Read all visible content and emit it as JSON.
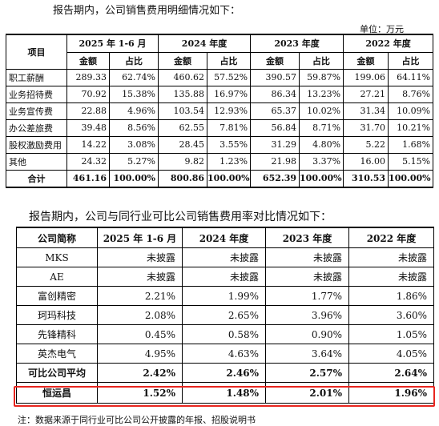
{
  "intro1": "报告期内，公司销售费用明细情况如下：",
  "unit": "单位：万元",
  "table1": {
    "item_header": "项目",
    "periods": [
      "2025 年 1-6 月",
      "2024 年度",
      "2023 年度",
      "2022 年度"
    ],
    "amount_label": "金额",
    "ratio_label": "占比",
    "rows": [
      {
        "name": "职工薪酬",
        "cells": [
          "289.33",
          "62.74%",
          "460.62",
          "57.52%",
          "390.57",
          "59.87%",
          "199.06",
          "64.11%"
        ]
      },
      {
        "name": "业务招待费",
        "cells": [
          "70.92",
          "15.38%",
          "135.88",
          "16.97%",
          "86.34",
          "13.23%",
          "27.21",
          "8.76%"
        ]
      },
      {
        "name": "业务宣传费",
        "cells": [
          "22.88",
          "4.96%",
          "103.54",
          "12.93%",
          "65.37",
          "10.02%",
          "31.34",
          "10.09%"
        ]
      },
      {
        "name": "办公差旅费",
        "cells": [
          "39.48",
          "8.56%",
          "62.55",
          "7.81%",
          "56.84",
          "8.71%",
          "31.70",
          "10.21%"
        ]
      },
      {
        "name": "股权激励费用",
        "cells": [
          "14.22",
          "3.08%",
          "28.45",
          "3.55%",
          "31.29",
          "4.80%",
          "5.22",
          "1.68%"
        ]
      },
      {
        "name": "其他",
        "cells": [
          "24.32",
          "5.27%",
          "9.82",
          "1.23%",
          "21.98",
          "3.37%",
          "16.00",
          "5.15%"
        ]
      }
    ],
    "total": {
      "name": "合计",
      "cells": [
        "461.16",
        "100.00%",
        "800.86",
        "100.00%",
        "652.39",
        "100.00%",
        "310.53",
        "100.00%"
      ]
    }
  },
  "intro2": "报告期内，公司与同行业可比公司销售费用率对比情况如下：",
  "table2": {
    "headers": [
      "公司简称",
      "2025 年 1-6 月",
      "2024 年度",
      "2023 年度",
      "2022 年度"
    ],
    "rows": [
      {
        "name": "MKS",
        "cells": [
          "未披露",
          "未披露",
          "未披露",
          "未披露"
        ]
      },
      {
        "name": "AE",
        "cells": [
          "未披露",
          "未披露",
          "未披露",
          "未披露"
        ]
      },
      {
        "name": "富创精密",
        "cells": [
          "2.21%",
          "1.99%",
          "1.77%",
          "1.86%"
        ]
      },
      {
        "name": "珂玛科技",
        "cells": [
          "2.08%",
          "2.65%",
          "3.96%",
          "3.60%"
        ]
      },
      {
        "name": "先锋精科",
        "cells": [
          "0.45%",
          "0.58%",
          "0.90%",
          "1.05%"
        ]
      },
      {
        "name": "英杰电气",
        "cells": [
          "4.95%",
          "4.63%",
          "3.64%",
          "4.05%"
        ]
      }
    ],
    "average": {
      "name": "可比公司平均",
      "cells": [
        "2.42%",
        "2.46%",
        "2.57%",
        "2.64%"
      ]
    },
    "company": {
      "name": "恒运昌",
      "cells": [
        "1.52%",
        "1.48%",
        "2.01%",
        "1.96%"
      ]
    }
  },
  "highlight_color": "#e8251f",
  "footnote": "注：数据来源于同行业可比公司公开披露的年报、招股说明书"
}
